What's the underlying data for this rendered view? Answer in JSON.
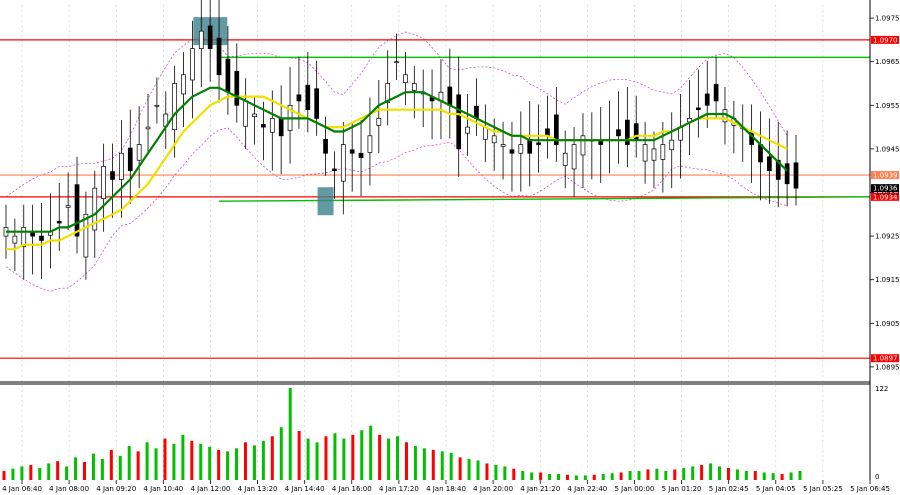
{
  "chart_data": {
    "type": "candlestick",
    "price_axis": {
      "ticks": [
        "1.0975",
        "1.0965",
        "1.0955",
        "1.0945",
        "1.0935",
        "1.0925",
        "1.0915",
        "1.0905",
        "1.0895"
      ],
      "ylim": [
        1.0892,
        1.0978
      ]
    },
    "volume_axis": {
      "ticks": [
        "122",
        "0"
      ],
      "max": 122
    },
    "time_axis": {
      "labels": [
        "4 Jan 06:40",
        "4 Jan 08:00",
        "4 Jan 09:20",
        "4 Jan 10:40",
        "4 Jan 12:00",
        "4 Jan 13:20",
        "4 Jan 14:40",
        "4 Jan 16:00",
        "4 Jan 17:20",
        "4 Jan 18:40",
        "4 Jan 20:00",
        "4 Jan 21:20",
        "4 Jan 22:40",
        "5 Jan 00:00",
        "5 Jan 01:20",
        "5 Jan 02:45",
        "5 Jan 04:05",
        "5 Jan 05:25",
        "5 Jan 06:45"
      ]
    },
    "levels": [
      {
        "label": "1.0970",
        "value": 1.097,
        "color": "#ff0000"
      },
      {
        "label": "1.0939",
        "value": 1.0939,
        "color": "#ff7f50"
      },
      {
        "label": "1.0934",
        "value": 1.0934,
        "color": "#ff0000"
      },
      {
        "label": "1.0897",
        "value": 1.0897,
        "color": "#ff0000"
      }
    ],
    "current_price": "1.0936",
    "close_series": [
      1.0927,
      1.0925,
      1.0927,
      1.0925,
      1.0924,
      1.0926,
      1.0928,
      1.0932,
      1.0925,
      1.093,
      1.0936,
      1.0941,
      1.0938,
      1.0944,
      1.094,
      1.0946,
      1.095,
      1.0955,
      1.0953,
      1.096,
      1.0962,
      1.0968,
      1.0972,
      1.0968,
      1.0962,
      1.0958,
      1.0955,
      1.0956,
      1.0953,
      1.095,
      1.0952,
      1.0948,
      1.0955,
      1.0956,
      1.0954,
      1.0952,
      1.0944,
      1.094,
      1.0946,
      1.0944,
      1.0943,
      1.0948,
      1.0952,
      1.096,
      1.0965,
      1.0962,
      1.096,
      1.0958,
      1.0956,
      1.0958,
      1.0955,
      1.0945,
      1.095,
      1.0952,
      1.095,
      1.0948,
      1.0946,
      1.0944,
      1.0946,
      1.0944,
      1.0946,
      1.0948,
      1.0946,
      1.0944,
      1.0946,
      1.0948,
      1.0947,
      1.0946,
      1.0947,
      1.0948,
      1.0946,
      1.0947,
      1.0946,
      1.0945,
      1.0946,
      1.0947,
      1.095,
      1.0952,
      1.0954,
      1.0955,
      1.0956,
      1.0954,
      1.0952,
      1.095,
      1.0946,
      1.0942,
      1.094,
      1.0938,
      1.0937,
      1.0936
    ],
    "ma_green_series": [
      1.0926,
      1.0926,
      1.0926,
      1.0926,
      1.0926,
      1.0926,
      1.0927,
      1.0927,
      1.0928,
      1.0929,
      1.093,
      1.0932,
      1.0934,
      1.0936,
      1.0938,
      1.0941,
      1.0944,
      1.0947,
      1.095,
      1.0953,
      1.0955,
      1.0957,
      1.0958,
      1.0959,
      1.0959,
      1.0958,
      1.0957,
      1.0956,
      1.0955,
      1.0954,
      1.0953,
      1.0952,
      1.0952,
      1.0952,
      1.0952,
      1.0951,
      1.095,
      1.0949,
      1.0949,
      1.095,
      1.0951,
      1.0953,
      1.0955,
      1.0956,
      1.0957,
      1.0958,
      1.0958,
      1.0958,
      1.0957,
      1.0956,
      1.0955,
      1.0954,
      1.0953,
      1.0952,
      1.0951,
      1.095,
      1.0949,
      1.0948,
      1.0948,
      1.0947,
      1.0947,
      1.0947,
      1.0947,
      1.0947,
      1.0947,
      1.0947,
      1.0947,
      1.0947,
      1.0947,
      1.0947,
      1.0947,
      1.0947,
      1.0947,
      1.0947,
      1.0948,
      1.0949,
      1.095,
      1.0951,
      1.0952,
      1.0953,
      1.0953,
      1.0953,
      1.0952,
      1.095,
      1.0948,
      1.0946,
      1.0944,
      1.0942,
      1.094
    ],
    "ma_yellow_series": [
      1.0922,
      1.0922,
      1.0923,
      1.0923,
      1.0923,
      1.0924,
      1.0924,
      1.0925,
      1.0926,
      1.0927,
      1.0928,
      1.0929,
      1.093,
      1.0931,
      1.0933,
      1.0935,
      1.0937,
      1.094,
      1.0943,
      1.0946,
      1.0949,
      1.0951,
      1.0953,
      1.0955,
      1.0956,
      1.0957,
      1.0957,
      1.0957,
      1.0957,
      1.0957,
      1.0956,
      1.0955,
      1.0954,
      1.0953,
      1.0952,
      1.0951,
      1.095,
      1.095,
      1.095,
      1.0951,
      1.0952,
      1.0953,
      1.0954,
      1.0954,
      1.0954,
      1.0954,
      1.0954,
      1.0954,
      1.0954,
      1.0954,
      1.0953,
      1.0953,
      1.0952,
      1.0951,
      1.095,
      1.0949,
      1.0949,
      1.0948,
      1.0948,
      1.0948,
      1.0948,
      1.0948,
      1.0947,
      1.0947,
      1.0947,
      1.0947,
      1.0947,
      1.0947,
      1.0947,
      1.0947,
      1.0947,
      1.0948,
      1.0948,
      1.0948,
      1.0949,
      1.0949,
      1.095,
      1.0951,
      1.0952,
      1.0952,
      1.0952,
      1.0952,
      1.0951,
      1.095,
      1.0949,
      1.0948,
      1.0947,
      1.0946,
      1.0945
    ],
    "volumes": [
      12,
      15,
      18,
      20,
      16,
      22,
      25,
      18,
      30,
      24,
      35,
      28,
      40,
      32,
      45,
      38,
      50,
      42,
      55,
      48,
      60,
      52,
      48,
      44,
      40,
      38,
      42,
      50,
      46,
      52,
      58,
      70,
      122,
      65,
      55,
      50,
      58,
      62,
      55,
      60,
      66,
      72,
      60,
      55,
      58,
      50,
      45,
      42,
      40,
      38,
      36,
      30,
      28,
      26,
      22,
      20,
      18,
      15,
      12,
      10,
      10,
      8,
      8,
      7,
      6,
      6,
      7,
      8,
      9,
      10,
      12,
      12,
      14,
      15,
      12,
      14,
      16,
      18,
      20,
      22,
      18,
      16,
      14,
      12,
      12,
      10,
      9,
      8,
      10,
      12
    ],
    "highlight_boxes": [
      {
        "near_price": 1.0972,
        "note": "high"
      },
      {
        "near_price": 1.0933,
        "note": "low"
      }
    ]
  }
}
